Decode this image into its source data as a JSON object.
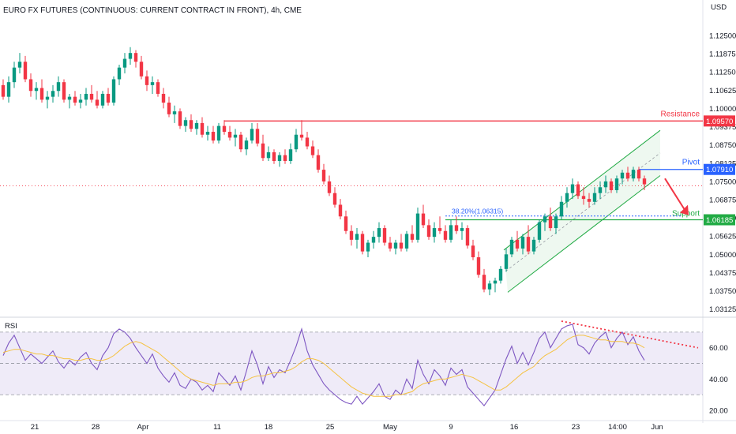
{
  "header": {
    "title": "EURO FX FUTURES (CONTINUOUS: CURRENT CONTRACT IN FRONT), 4h, CME",
    "currency": "USD"
  },
  "chart_data": [
    {
      "type": "candlestick",
      "name": "price",
      "y_axis_ticks": [
        "1.12500",
        "1.11875",
        "1.11250",
        "1.10625",
        "1.10000",
        "1.09375",
        "1.08750",
        "1.08125",
        "1.07500",
        "1.06875",
        "1.06250",
        "1.05625",
        "1.05000",
        "1.04375",
        "1.03750",
        "1.03125"
      ],
      "ylim": [
        1.029,
        1.135
      ],
      "x_axis_ticks": [
        "21",
        "28",
        "Apr",
        "11",
        "18",
        "25",
        "May",
        "9",
        "16",
        "23",
        "14:00",
        "Jun"
      ],
      "key_levels": [
        {
          "label": "Resistance",
          "value": 1.0957,
          "tag": "1.09570",
          "color": "#f23645"
        },
        {
          "label": "Pivot",
          "value": 1.0791,
          "tag": "1.07910",
          "color": "#2962ff"
        },
        {
          "label": "Support",
          "value": 1.06185,
          "tag": "1.06185",
          "color": "#22ab45"
        }
      ],
      "fib_level": {
        "label": "38.20%(1.06315)",
        "value": 1.06315
      },
      "last_price_line": 1.0735,
      "channel": {
        "color": "#22ab45"
      },
      "candles": [
        [
          0,
          1.108,
          1.11,
          1.103,
          1.104
        ],
        [
          1,
          1.104,
          1.111,
          1.102,
          1.109
        ],
        [
          2,
          1.109,
          1.116,
          1.107,
          1.114
        ],
        [
          3,
          1.114,
          1.119,
          1.112,
          1.116
        ],
        [
          4,
          1.116,
          1.118,
          1.109,
          1.11
        ],
        [
          5,
          1.11,
          1.112,
          1.104,
          1.106
        ],
        [
          6,
          1.106,
          1.109,
          1.103,
          1.107
        ],
        [
          7,
          1.107,
          1.11,
          1.102,
          1.103
        ],
        [
          8,
          1.103,
          1.106,
          1.1,
          1.104
        ],
        [
          9,
          1.104,
          1.108,
          1.102,
          1.106
        ],
        [
          10,
          1.106,
          1.111,
          1.104,
          1.109
        ],
        [
          11,
          1.109,
          1.11,
          1.102,
          1.103
        ],
        [
          12,
          1.103,
          1.105,
          1.1,
          1.104
        ],
        [
          13,
          1.104,
          1.106,
          1.101,
          1.102
        ],
        [
          14,
          1.102,
          1.105,
          1.1,
          1.103
        ],
        [
          15,
          1.103,
          1.107,
          1.101,
          1.105
        ],
        [
          16,
          1.105,
          1.108,
          1.102,
          1.103
        ],
        [
          17,
          1.103,
          1.106,
          1.1,
          1.101
        ],
        [
          18,
          1.101,
          1.106,
          1.1,
          1.105
        ],
        [
          19,
          1.105,
          1.107,
          1.101,
          1.102
        ],
        [
          20,
          1.102,
          1.111,
          1.101,
          1.11
        ],
        [
          21,
          1.11,
          1.115,
          1.108,
          1.114
        ],
        [
          22,
          1.114,
          1.119,
          1.112,
          1.117
        ],
        [
          23,
          1.117,
          1.121,
          1.115,
          1.119
        ],
        [
          24,
          1.119,
          1.12,
          1.114,
          1.116
        ],
        [
          25,
          1.116,
          1.118,
          1.11,
          1.111
        ],
        [
          26,
          1.111,
          1.113,
          1.106,
          1.108
        ],
        [
          27,
          1.108,
          1.111,
          1.105,
          1.109
        ],
        [
          28,
          1.109,
          1.11,
          1.104,
          1.105
        ],
        [
          29,
          1.105,
          1.107,
          1.1,
          1.102
        ],
        [
          30,
          1.102,
          1.104,
          1.097,
          1.098
        ],
        [
          31,
          1.098,
          1.101,
          1.095,
          1.099
        ],
        [
          32,
          1.099,
          1.1,
          1.093,
          1.094
        ],
        [
          33,
          1.094,
          1.097,
          1.092,
          1.096
        ],
        [
          34,
          1.096,
          1.098,
          1.092,
          1.093
        ],
        [
          35,
          1.093,
          1.096,
          1.091,
          1.095
        ],
        [
          36,
          1.095,
          1.097,
          1.09,
          1.091
        ],
        [
          37,
          1.091,
          1.094,
          1.089,
          1.092
        ],
        [
          38,
          1.092,
          1.094,
          1.088,
          1.089
        ],
        [
          39,
          1.089,
          1.095,
          1.088,
          1.094
        ],
        [
          40,
          1.094,
          1.096,
          1.091,
          1.092
        ],
        [
          41,
          1.092,
          1.094,
          1.089,
          1.09
        ],
        [
          42,
          1.09,
          1.093,
          1.087,
          1.091
        ],
        [
          43,
          1.091,
          1.092,
          1.085,
          1.086
        ],
        [
          44,
          1.086,
          1.09,
          1.084,
          1.089
        ],
        [
          45,
          1.089,
          1.095,
          1.088,
          1.093
        ],
        [
          46,
          1.093,
          1.095,
          1.087,
          1.088
        ],
        [
          47,
          1.088,
          1.091,
          1.082,
          1.083
        ],
        [
          48,
          1.083,
          1.087,
          1.082,
          1.085
        ],
        [
          49,
          1.085,
          1.086,
          1.081,
          1.082
        ],
        [
          50,
          1.082,
          1.085,
          1.08,
          1.084
        ],
        [
          51,
          1.084,
          1.086,
          1.081,
          1.082
        ],
        [
          52,
          1.082,
          1.088,
          1.081,
          1.086
        ],
        [
          53,
          1.086,
          1.093,
          1.085,
          1.091
        ],
        [
          54,
          1.091,
          1.096,
          1.089,
          1.09
        ],
        [
          55,
          1.09,
          1.092,
          1.086,
          1.087
        ],
        [
          56,
          1.087,
          1.089,
          1.083,
          1.084
        ],
        [
          57,
          1.084,
          1.086,
          1.078,
          1.079
        ],
        [
          58,
          1.079,
          1.081,
          1.074,
          1.075
        ],
        [
          59,
          1.075,
          1.077,
          1.07,
          1.071
        ],
        [
          60,
          1.071,
          1.073,
          1.066,
          1.067
        ],
        [
          61,
          1.067,
          1.069,
          1.062,
          1.063
        ],
        [
          62,
          1.063,
          1.065,
          1.057,
          1.058
        ],
        [
          63,
          1.058,
          1.06,
          1.053,
          1.055
        ],
        [
          64,
          1.055,
          1.059,
          1.052,
          1.057
        ],
        [
          65,
          1.057,
          1.058,
          1.05,
          1.051
        ],
        [
          66,
          1.051,
          1.055,
          1.049,
          1.054
        ],
        [
          67,
          1.054,
          1.058,
          1.052,
          1.056
        ],
        [
          68,
          1.056,
          1.061,
          1.054,
          1.059
        ],
        [
          69,
          1.059,
          1.06,
          1.053,
          1.054
        ],
        [
          70,
          1.054,
          1.056,
          1.051,
          1.052
        ],
        [
          71,
          1.052,
          1.055,
          1.05,
          1.054
        ],
        [
          72,
          1.054,
          1.057,
          1.051,
          1.052
        ],
        [
          73,
          1.052,
          1.058,
          1.051,
          1.057
        ],
        [
          74,
          1.057,
          1.06,
          1.054,
          1.055
        ],
        [
          75,
          1.055,
          1.066,
          1.054,
          1.064
        ],
        [
          76,
          1.064,
          1.067,
          1.059,
          1.06
        ],
        [
          77,
          1.06,
          1.062,
          1.055,
          1.056
        ],
        [
          78,
          1.056,
          1.061,
          1.054,
          1.059
        ],
        [
          79,
          1.059,
          1.063,
          1.057,
          1.058
        ],
        [
          80,
          1.058,
          1.06,
          1.054,
          1.055
        ],
        [
          81,
          1.055,
          1.062,
          1.054,
          1.06
        ],
        [
          82,
          1.06,
          1.063,
          1.057,
          1.058
        ],
        [
          83,
          1.058,
          1.061,
          1.055,
          1.059
        ],
        [
          84,
          1.059,
          1.06,
          1.052,
          1.053
        ],
        [
          85,
          1.053,
          1.055,
          1.048,
          1.049
        ],
        [
          86,
          1.049,
          1.051,
          1.042,
          1.043
        ],
        [
          87,
          1.043,
          1.045,
          1.037,
          1.038
        ],
        [
          88,
          1.038,
          1.041,
          1.036,
          1.04
        ],
        [
          89,
          1.04,
          1.042,
          1.037,
          1.041
        ],
        [
          90,
          1.041,
          1.046,
          1.04,
          1.045
        ],
        [
          91,
          1.045,
          1.052,
          1.044,
          1.05
        ],
        [
          92,
          1.05,
          1.056,
          1.049,
          1.055
        ],
        [
          93,
          1.055,
          1.058,
          1.051,
          1.052
        ],
        [
          94,
          1.052,
          1.057,
          1.05,
          1.056
        ],
        [
          95,
          1.056,
          1.06,
          1.05,
          1.051
        ],
        [
          96,
          1.051,
          1.056,
          1.05,
          1.055
        ],
        [
          97,
          1.055,
          1.062,
          1.054,
          1.061
        ],
        [
          98,
          1.061,
          1.064,
          1.058,
          1.063
        ],
        [
          99,
          1.063,
          1.066,
          1.058,
          1.059
        ],
        [
          100,
          1.059,
          1.064,
          1.057,
          1.063
        ],
        [
          101,
          1.063,
          1.07,
          1.062,
          1.068
        ],
        [
          102,
          1.068,
          1.073,
          1.066,
          1.071
        ],
        [
          103,
          1.071,
          1.076,
          1.069,
          1.074
        ],
        [
          104,
          1.074,
          1.075,
          1.069,
          1.07
        ],
        [
          105,
          1.07,
          1.073,
          1.067,
          1.069
        ],
        [
          106,
          1.069,
          1.071,
          1.066,
          1.068
        ],
        [
          107,
          1.068,
          1.073,
          1.067,
          1.071
        ],
        [
          108,
          1.071,
          1.075,
          1.069,
          1.073
        ],
        [
          109,
          1.073,
          1.077,
          1.071,
          1.075
        ],
        [
          110,
          1.075,
          1.076,
          1.071,
          1.072
        ],
        [
          111,
          1.072,
          1.077,
          1.071,
          1.076
        ],
        [
          112,
          1.076,
          1.079,
          1.074,
          1.078
        ],
        [
          113,
          1.078,
          1.08,
          1.075,
          1.076
        ],
        [
          114,
          1.076,
          1.08,
          1.075,
          1.079
        ],
        [
          115,
          1.079,
          1.08,
          1.075,
          1.076
        ],
        [
          116,
          1.076,
          1.077,
          1.072,
          1.074
        ]
      ]
    },
    {
      "type": "line",
      "name": "RSI",
      "label": "RSI",
      "y_axis_ticks": [
        "60.00",
        "40.00",
        "20.00"
      ],
      "ylim": [
        15,
        78
      ],
      "band": [
        30,
        70
      ],
      "midline": 50,
      "series": [
        {
          "name": "RSI",
          "color": "#7e57c2",
          "values": [
            55,
            63,
            68,
            60,
            52,
            56,
            53,
            50,
            54,
            58,
            51,
            47,
            52,
            49,
            54,
            57,
            50,
            46,
            55,
            60,
            69,
            72,
            70,
            66,
            60,
            55,
            50,
            56,
            47,
            42,
            38,
            44,
            36,
            34,
            40,
            38,
            33,
            36,
            32,
            44,
            40,
            36,
            42,
            33,
            45,
            58,
            49,
            37,
            48,
            41,
            46,
            44,
            52,
            61,
            72,
            58,
            49,
            43,
            37,
            33,
            30,
            27,
            25,
            24,
            29,
            24,
            28,
            32,
            37,
            29,
            27,
            33,
            30,
            40,
            34,
            52,
            43,
            37,
            46,
            42,
            36,
            47,
            43,
            46,
            35,
            31,
            27,
            23,
            28,
            33,
            43,
            53,
            61,
            50,
            57,
            49,
            57,
            66,
            70,
            60,
            66,
            72,
            74,
            75,
            62,
            60,
            56,
            63,
            67,
            70,
            60,
            66,
            70,
            62,
            67,
            58,
            52
          ]
        },
        {
          "name": "RSI MA",
          "color": "#f5c242",
          "values": [
            57,
            58,
            59,
            59,
            58,
            57,
            56,
            56,
            55,
            55,
            54,
            53,
            53,
            52,
            52,
            53,
            53,
            52,
            52,
            53,
            55,
            58,
            61,
            63,
            64,
            63,
            61,
            59,
            57,
            54,
            51,
            48,
            45,
            42,
            40,
            39,
            38,
            37,
            36,
            37,
            37,
            37,
            38,
            38,
            39,
            41,
            42,
            42,
            43,
            44,
            44,
            45,
            46,
            48,
            51,
            53,
            53,
            52,
            50,
            47,
            44,
            41,
            38,
            35,
            33,
            31,
            30,
            29,
            29,
            29,
            29,
            30,
            30,
            31,
            32,
            35,
            37,
            38,
            39,
            40,
            40,
            41,
            42,
            43,
            42,
            41,
            39,
            37,
            35,
            33,
            33,
            35,
            38,
            41,
            44,
            46,
            48,
            52,
            55,
            57,
            59,
            62,
            65,
            67,
            68,
            68,
            67,
            66,
            65,
            65,
            64,
            64,
            64,
            63,
            63,
            62,
            60
          ]
        }
      ],
      "annotations": [
        {
          "type": "trendline",
          "color": "#f23645",
          "style": "dotted"
        }
      ]
    }
  ]
}
